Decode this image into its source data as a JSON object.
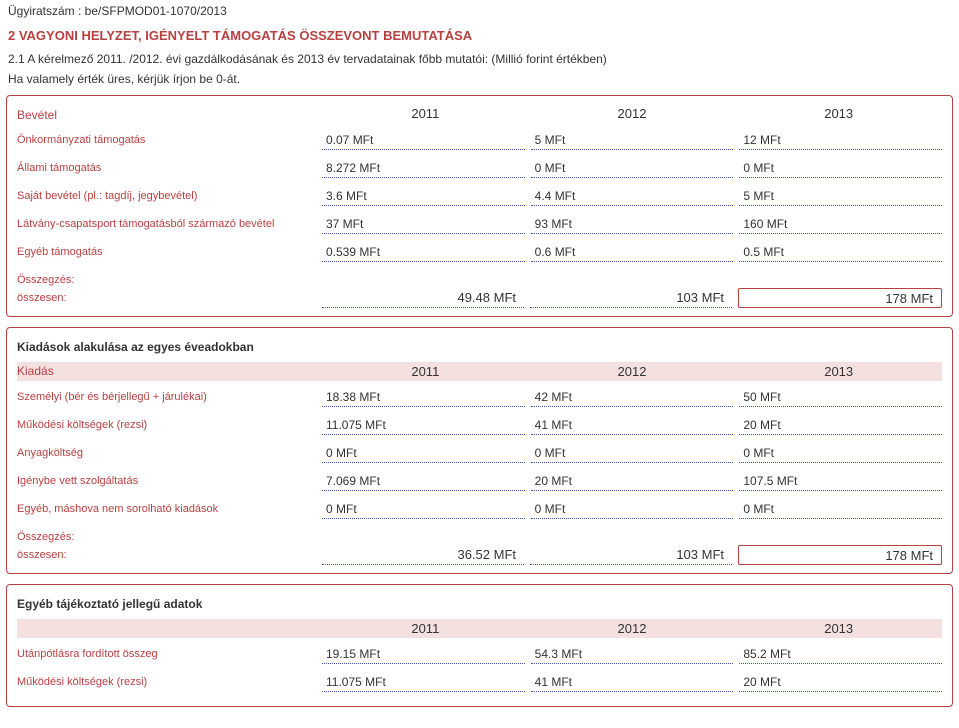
{
  "doc_number": "Ügyiratszám : be/SFPMOD01-1070/2013",
  "main_header": "2 VAGYONI HELYZET, IGÉNYELT TÁMOGATÁS ÖSSZEVONT BEMUTATÁSA",
  "intro_line1": "2.1 A kérelmező 2011. /2012. évi gazdálkodásának és 2013 év tervadatainak főbb mutatói: (Millió forint értékben)",
  "intro_line2": "Ha valamely érték üres, kérjük írjon be 0-át.",
  "years": [
    "2011",
    "2012",
    "2013"
  ],
  "bevetel": {
    "label": "Bevétel",
    "rows": [
      {
        "label": "Önkormányzati támogatás",
        "v": [
          "0.07 MFt",
          "5 MFt",
          "12 MFt"
        ]
      },
      {
        "label": "Állami támogatás",
        "v": [
          "8.272 MFt",
          "0 MFt",
          "0 MFt"
        ]
      },
      {
        "label": "Saját bevétel (pl.: tagdíj, jegybevétel)",
        "v": [
          "3.6 MFt",
          "4.4 MFt",
          "5 MFt"
        ]
      },
      {
        "label": "Látvány-csapatsport támogatásból származó bevétel",
        "v": [
          "37 MFt",
          "93 MFt",
          "160 MFt"
        ]
      },
      {
        "label": "Egyéb támogatás",
        "v": [
          "0.539 MFt",
          "0.6 MFt",
          "0.5 MFt"
        ]
      }
    ],
    "summary_label": "Összegzés:",
    "total_label": "összesen:",
    "totals": [
      "49.48  MFt",
      "103  MFt",
      "178  MFt"
    ]
  },
  "kiadas": {
    "title": "Kiadások alakulása az egyes éveadokban",
    "label": "Kiadás",
    "rows": [
      {
        "label": "Személyi (bér és bérjellegű + járulékai)",
        "v": [
          "18.38 MFt",
          "42 MFt",
          "50 MFt"
        ]
      },
      {
        "label": "Működési költségek (rezsi)",
        "v": [
          "11.075 MFt",
          "41 MFt",
          "20 MFt"
        ]
      },
      {
        "label": "Anyagköltség",
        "v": [
          "0 MFt",
          "0 MFt",
          "0 MFt"
        ]
      },
      {
        "label": "Igénybe vett szolgáltatás",
        "v": [
          "7.069 MFt",
          "20 MFt",
          "107.5 MFt"
        ]
      },
      {
        "label": "Egyéb, máshova nem sorolható kiadások",
        "v": [
          "0 MFt",
          "0 MFt",
          "0 MFt"
        ]
      }
    ],
    "summary_label": "Összegzés:",
    "total_label": "összesen:",
    "totals": [
      "36.52  MFt",
      "103  MFt",
      "178  MFt"
    ]
  },
  "egyeb": {
    "title": "Egyéb tájékoztató jellegű adatok",
    "rows": [
      {
        "label": "Utánpótlásra fordított összeg",
        "v": [
          "19.15 MFt",
          "54.3 MFt",
          "85.2 MFt"
        ]
      },
      {
        "label": "Működési költségek (rezsi)",
        "v": [
          "11.075 MFt",
          "41 MFt",
          "20 MFt"
        ]
      }
    ]
  },
  "colors": {
    "accent": "#b84040",
    "dotted": "#3b5aa8",
    "shade": "#f5e0e0"
  }
}
